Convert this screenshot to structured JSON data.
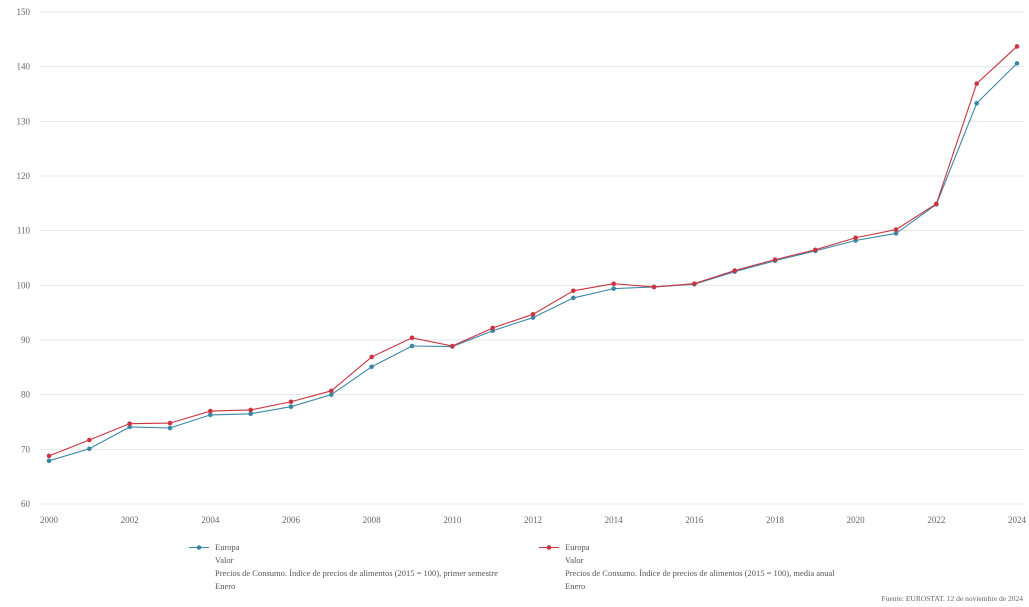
{
  "chart_data": {
    "type": "line",
    "x": [
      2000,
      2001,
      2002,
      2003,
      2004,
      2005,
      2006,
      2007,
      2008,
      2009,
      2010,
      2011,
      2012,
      2013,
      2014,
      2015,
      2016,
      2017,
      2018,
      2019,
      2020,
      2021,
      2022,
      2023,
      2024
    ],
    "xlim": [
      2000,
      2024
    ],
    "ylim": [
      60,
      150
    ],
    "x_tick_labels": [
      "2000",
      "2002",
      "2004",
      "2006",
      "2008",
      "2010",
      "2012",
      "2014",
      "2016",
      "2018",
      "2020",
      "2022",
      "2024"
    ],
    "y_tick_labels": [
      "60",
      "70",
      "80",
      "90",
      "100",
      "110",
      "120",
      "130",
      "140",
      "150"
    ],
    "grid": true,
    "legend_position": "bottom",
    "series": [
      {
        "name": "Europa",
        "color": "#3a86a8",
        "legend_lines": [
          "Valor",
          "Precios de Consumo. Índice de precios de alimentos (2015 = 100), primer semestre",
          "Enero"
        ],
        "values": [
          67.9,
          70.1,
          74.1,
          73.9,
          76.3,
          76.5,
          77.8,
          80.0,
          85.1,
          88.9,
          88.8,
          91.7,
          94.1,
          97.7,
          99.4,
          99.7,
          100.2,
          102.5,
          104.5,
          106.3,
          108.2,
          109.5,
          114.8,
          133.3,
          140.6
        ]
      },
      {
        "name": "Europa",
        "color": "#c9343f",
        "legend_lines": [
          "Valor",
          "Precios de Consumo. Índice de precios de alimentos (2015 = 100), media anual",
          "Enero"
        ],
        "values": [
          68.8,
          71.7,
          74.7,
          74.8,
          77.0,
          77.2,
          78.7,
          80.7,
          86.9,
          90.4,
          88.9,
          92.2,
          94.7,
          99.0,
          100.3,
          99.7,
          100.3,
          102.7,
          104.7,
          106.5,
          108.7,
          110.2,
          114.9,
          136.9,
          143.7
        ]
      }
    ]
  },
  "source": "Fuente: EUROSTAT. 12 de noviembre de 2024"
}
